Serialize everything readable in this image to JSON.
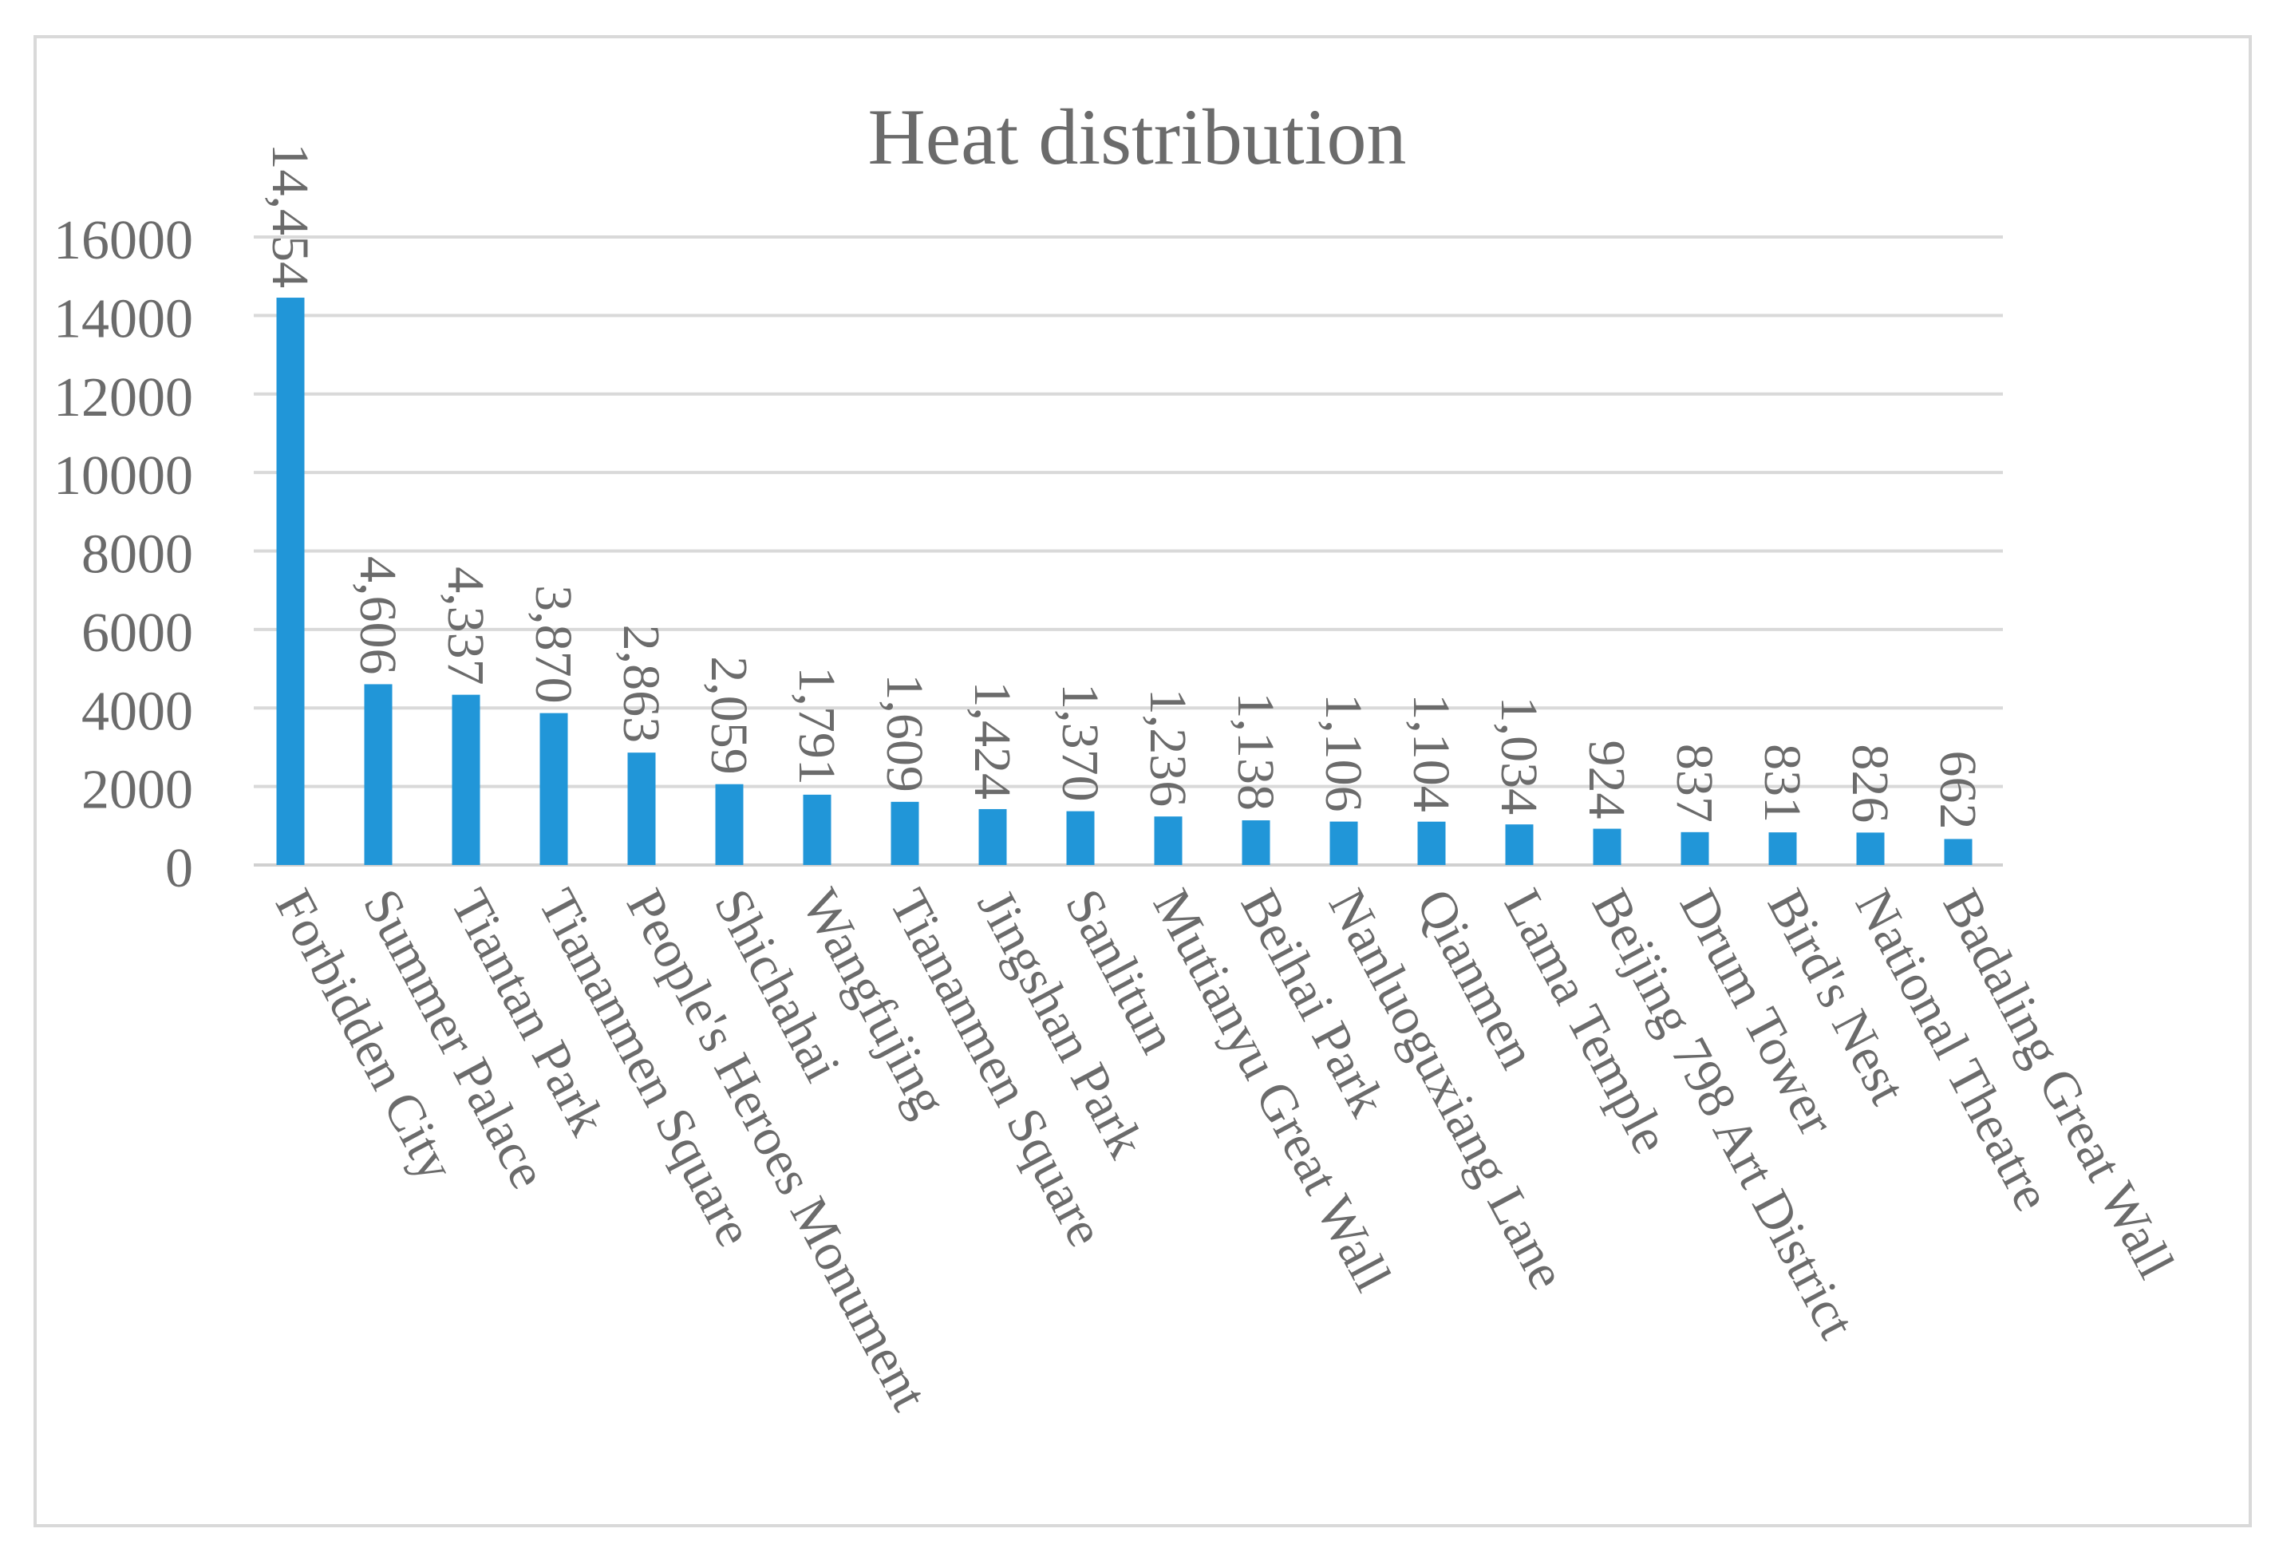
{
  "chart_data": {
    "type": "bar",
    "title": "Heat distribution",
    "xlabel": "",
    "ylabel": "",
    "ylim": [
      0,
      16000
    ],
    "yticks": [
      0,
      2000,
      4000,
      6000,
      8000,
      10000,
      12000,
      14000,
      16000
    ],
    "grid": true,
    "legend": "none",
    "categories": [
      "Forbidden City",
      "Summer Palace",
      "Tiantan Park",
      "Tiananmen Square",
      "People's Heroes Monument",
      "Shichahai",
      "Wangfujing",
      "Tiananmen Square",
      "Jingshan Park",
      "Sanlitun",
      "Mutianyu Great Wall",
      "Beihai Park",
      "Nanluoguxiang Lane",
      "Qianmen",
      "Lama Temple",
      "Beijing 798 Art District",
      "Drum Tower",
      "Bird's Nest",
      "National Theatre",
      "Badaling Great Wall"
    ],
    "values": [
      14454,
      4606,
      4337,
      3870,
      2863,
      2059,
      1791,
      1609,
      1424,
      1370,
      1236,
      1138,
      1106,
      1104,
      1034,
      924,
      837,
      831,
      826,
      662
    ],
    "value_labels": [
      "14,454",
      "4,606",
      "4,337",
      "3,870",
      "2,863",
      "2,059",
      "1,791",
      "1,609",
      "1,424",
      "1,370",
      "1,236",
      "1,138",
      "1,106",
      "1,104",
      "1,034",
      "924",
      "837",
      "831",
      "826",
      "662"
    ],
    "colors": {
      "bar": "#2196d8",
      "gridline": "#d9d9d9",
      "text": "#6b6b6b",
      "border": "#d9d9d9"
    }
  }
}
